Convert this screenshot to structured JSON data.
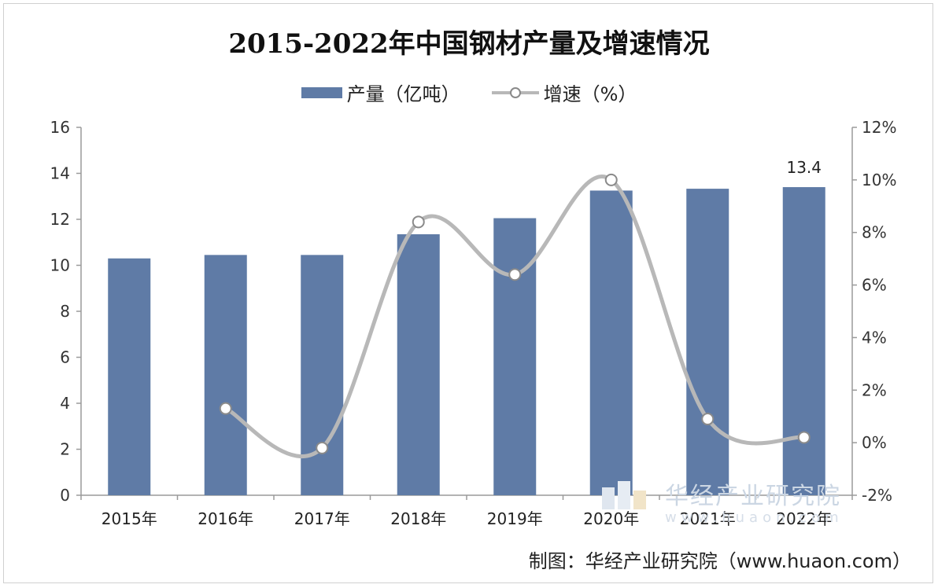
{
  "title": "2015-2022年中国钢材产量及增速情况",
  "legend": {
    "bar_label": "产量（亿吨）",
    "line_label": "增速（%）"
  },
  "source": "制图：华经产业研究院（www.huaon.com）",
  "watermark": {
    "name": "华经产业研究院",
    "url": "www.huaon.com"
  },
  "colors": {
    "bar": "#5f7ba6",
    "line": "#b8b8b8",
    "marker_fill": "#ffffff",
    "marker_stroke": "#8a8a8a"
  },
  "chart_data": {
    "type": "bar",
    "categories": [
      "2015年",
      "2016年",
      "2017年",
      "2018年",
      "2019年",
      "2020年",
      "2021年",
      "2022年"
    ],
    "series": [
      {
        "name": "产量（亿吨）",
        "type": "bar",
        "axis": "left",
        "values": [
          10.3,
          10.45,
          10.45,
          11.35,
          12.05,
          13.25,
          13.33,
          13.4
        ]
      },
      {
        "name": "增速（%）",
        "type": "line",
        "axis": "right",
        "smooth": true,
        "values": [
          null,
          1.3,
          -0.2,
          8.4,
          6.4,
          10.0,
          0.9,
          0.2
        ]
      }
    ],
    "data_labels": [
      {
        "category": "2022年",
        "text": "13.4"
      }
    ],
    "left_axis": {
      "min": 0,
      "max": 16,
      "ticks": [
        "0",
        "2",
        "4",
        "6",
        "8",
        "10",
        "12",
        "14",
        "16"
      ]
    },
    "right_axis": {
      "min": -2,
      "max": 12,
      "ticks": [
        "-2%",
        "0%",
        "2%",
        "4%",
        "6%",
        "8%",
        "10%",
        "12%"
      ]
    },
    "grid": false,
    "legend_position": "top"
  }
}
